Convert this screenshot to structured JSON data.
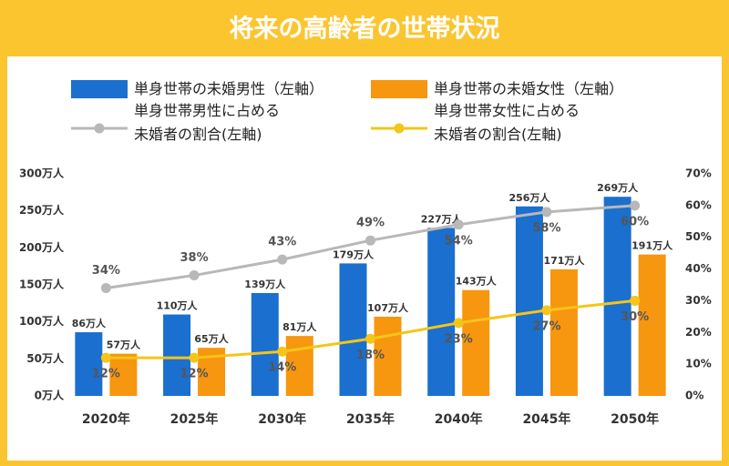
{
  "chart_data": {
    "type": "bar-line",
    "title": "将来の高齢者の世帯状況",
    "categories": [
      "2020年",
      "2025年",
      "2030年",
      "2035年",
      "2040年",
      "2045年",
      "2050年"
    ],
    "ylim": [
      0,
      300
    ],
    "yticks": [
      {
        "value": 0,
        "label": "0万人"
      },
      {
        "value": 50,
        "label": "50万人"
      },
      {
        "value": 100,
        "label": "100万人"
      },
      {
        "value": 150,
        "label": "150万人"
      },
      {
        "value": 200,
        "label": "200万人"
      },
      {
        "value": 250,
        "label": "250万人"
      },
      {
        "value": 300,
        "label": "300万人"
      }
    ],
    "y2lim": [
      0,
      70
    ],
    "y2ticks": [
      {
        "value": 0,
        "label": "0%"
      },
      {
        "value": 10,
        "label": "10%"
      },
      {
        "value": 20,
        "label": "20%"
      },
      {
        "value": 30,
        "label": "30%"
      },
      {
        "value": 40,
        "label": "40%"
      },
      {
        "value": 50,
        "label": "50%"
      },
      {
        "value": 60,
        "label": "60%"
      },
      {
        "value": 70,
        "label": "70%"
      }
    ],
    "series": [
      {
        "name": "単身世帯の未婚男性（左軸）",
        "type": "bar",
        "color": "#1a6fcf",
        "values": [
          86,
          110,
          139,
          179,
          227,
          256,
          269
        ],
        "value_labels": [
          "86万人",
          "110万人",
          "139万人",
          "179万人",
          "227万人",
          "256万人",
          "269万人"
        ]
      },
      {
        "name": "単身世帯の未婚女性（左軸）",
        "type": "bar",
        "color": "#f7960f",
        "values": [
          57,
          65,
          81,
          107,
          143,
          171,
          191
        ],
        "value_labels": [
          "57万人",
          "65万人",
          "81万人",
          "107万人",
          "143万人",
          "171万人",
          "191万人"
        ]
      },
      {
        "name": "単身世帯男性に占める\n未婚者の割合(左軸)",
        "type": "line",
        "axis": "y2",
        "color": "#b8b8b8",
        "values": [
          34,
          38,
          43,
          49,
          54,
          58,
          60
        ],
        "value_labels": [
          "34%",
          "38%",
          "43%",
          "49%",
          "54%",
          "58%",
          "60%"
        ]
      },
      {
        "name": "単身世帯女性に占める\n未婚者の割合(左軸)",
        "type": "line",
        "axis": "y2",
        "color": "#f5c518",
        "values": [
          12,
          12,
          14,
          18,
          23,
          27,
          30
        ],
        "value_labels": [
          "12%",
          "12%",
          "14%",
          "18%",
          "23%",
          "27%",
          "30%"
        ]
      }
    ]
  }
}
